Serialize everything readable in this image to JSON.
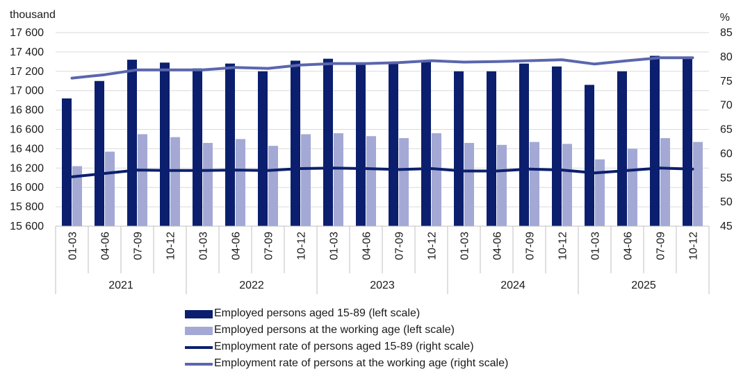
{
  "chart_data": {
    "type": "bar",
    "left_axis": {
      "unit": "thousand",
      "ylim": [
        15600,
        17600
      ],
      "ticks": [
        "15 600",
        "15 800",
        "16 000",
        "16 200",
        "16 400",
        "16 600",
        "16 800",
        "17 000",
        "17 200",
        "17 400",
        "17 600"
      ]
    },
    "right_axis": {
      "unit": "%",
      "ylim": [
        45,
        85
      ],
      "ticks": [
        "45",
        "50",
        "55",
        "60",
        "65",
        "70",
        "75",
        "80",
        "85"
      ]
    },
    "grid": true,
    "legend_position": "bottom",
    "quarter_labels": [
      "01-03",
      "04-06",
      "07-09",
      "10-12",
      "01-03",
      "04-06",
      "07-09",
      "10-12",
      "01-03",
      "04-06",
      "07-09",
      "10-12",
      "01-03",
      "04-06",
      "07-09",
      "10-12",
      "01-03",
      "04-06",
      "07-09",
      "10-12"
    ],
    "years": [
      "2021",
      "2022",
      "2023",
      "2024",
      "2025"
    ],
    "series": [
      {
        "name": "Employed persons aged 15-89 (left scale)",
        "type": "bar",
        "axis": "left",
        "color": "#0b1f6e",
        "values": [
          16920,
          17100,
          17320,
          17290,
          17230,
          17280,
          17200,
          17310,
          17330,
          17280,
          17290,
          17310,
          17200,
          17200,
          17280,
          17250,
          17060,
          17200,
          17360,
          17350
        ]
      },
      {
        "name": "Employed persons at the working age (left scale)",
        "type": "bar",
        "axis": "left",
        "color": "#a3a9d4",
        "values": [
          16220,
          16370,
          16550,
          16520,
          16460,
          16500,
          16430,
          16550,
          16560,
          16530,
          16510,
          16560,
          16460,
          16440,
          16470,
          16450,
          16290,
          16400,
          16510,
          16470
        ]
      },
      {
        "name": "Employment rate of persons aged 15-89 (right scale)",
        "type": "line",
        "axis": "right",
        "color": "#0b1f6e",
        "values": [
          55.2,
          55.9,
          56.6,
          56.5,
          56.5,
          56.6,
          56.5,
          56.9,
          57.0,
          56.9,
          56.7,
          56.9,
          56.4,
          56.4,
          56.8,
          56.6,
          56.0,
          56.5,
          57.0,
          56.8
        ]
      },
      {
        "name": "Employment rate of persons at the working age (right scale)",
        "type": "line",
        "axis": "right",
        "color": "#5a66ad",
        "values": [
          75.6,
          76.3,
          77.3,
          77.3,
          77.3,
          77.8,
          77.6,
          78.3,
          78.6,
          78.6,
          78.8,
          79.2,
          78.9,
          79.0,
          79.2,
          79.4,
          78.5,
          79.2,
          79.8,
          79.8
        ]
      }
    ]
  }
}
